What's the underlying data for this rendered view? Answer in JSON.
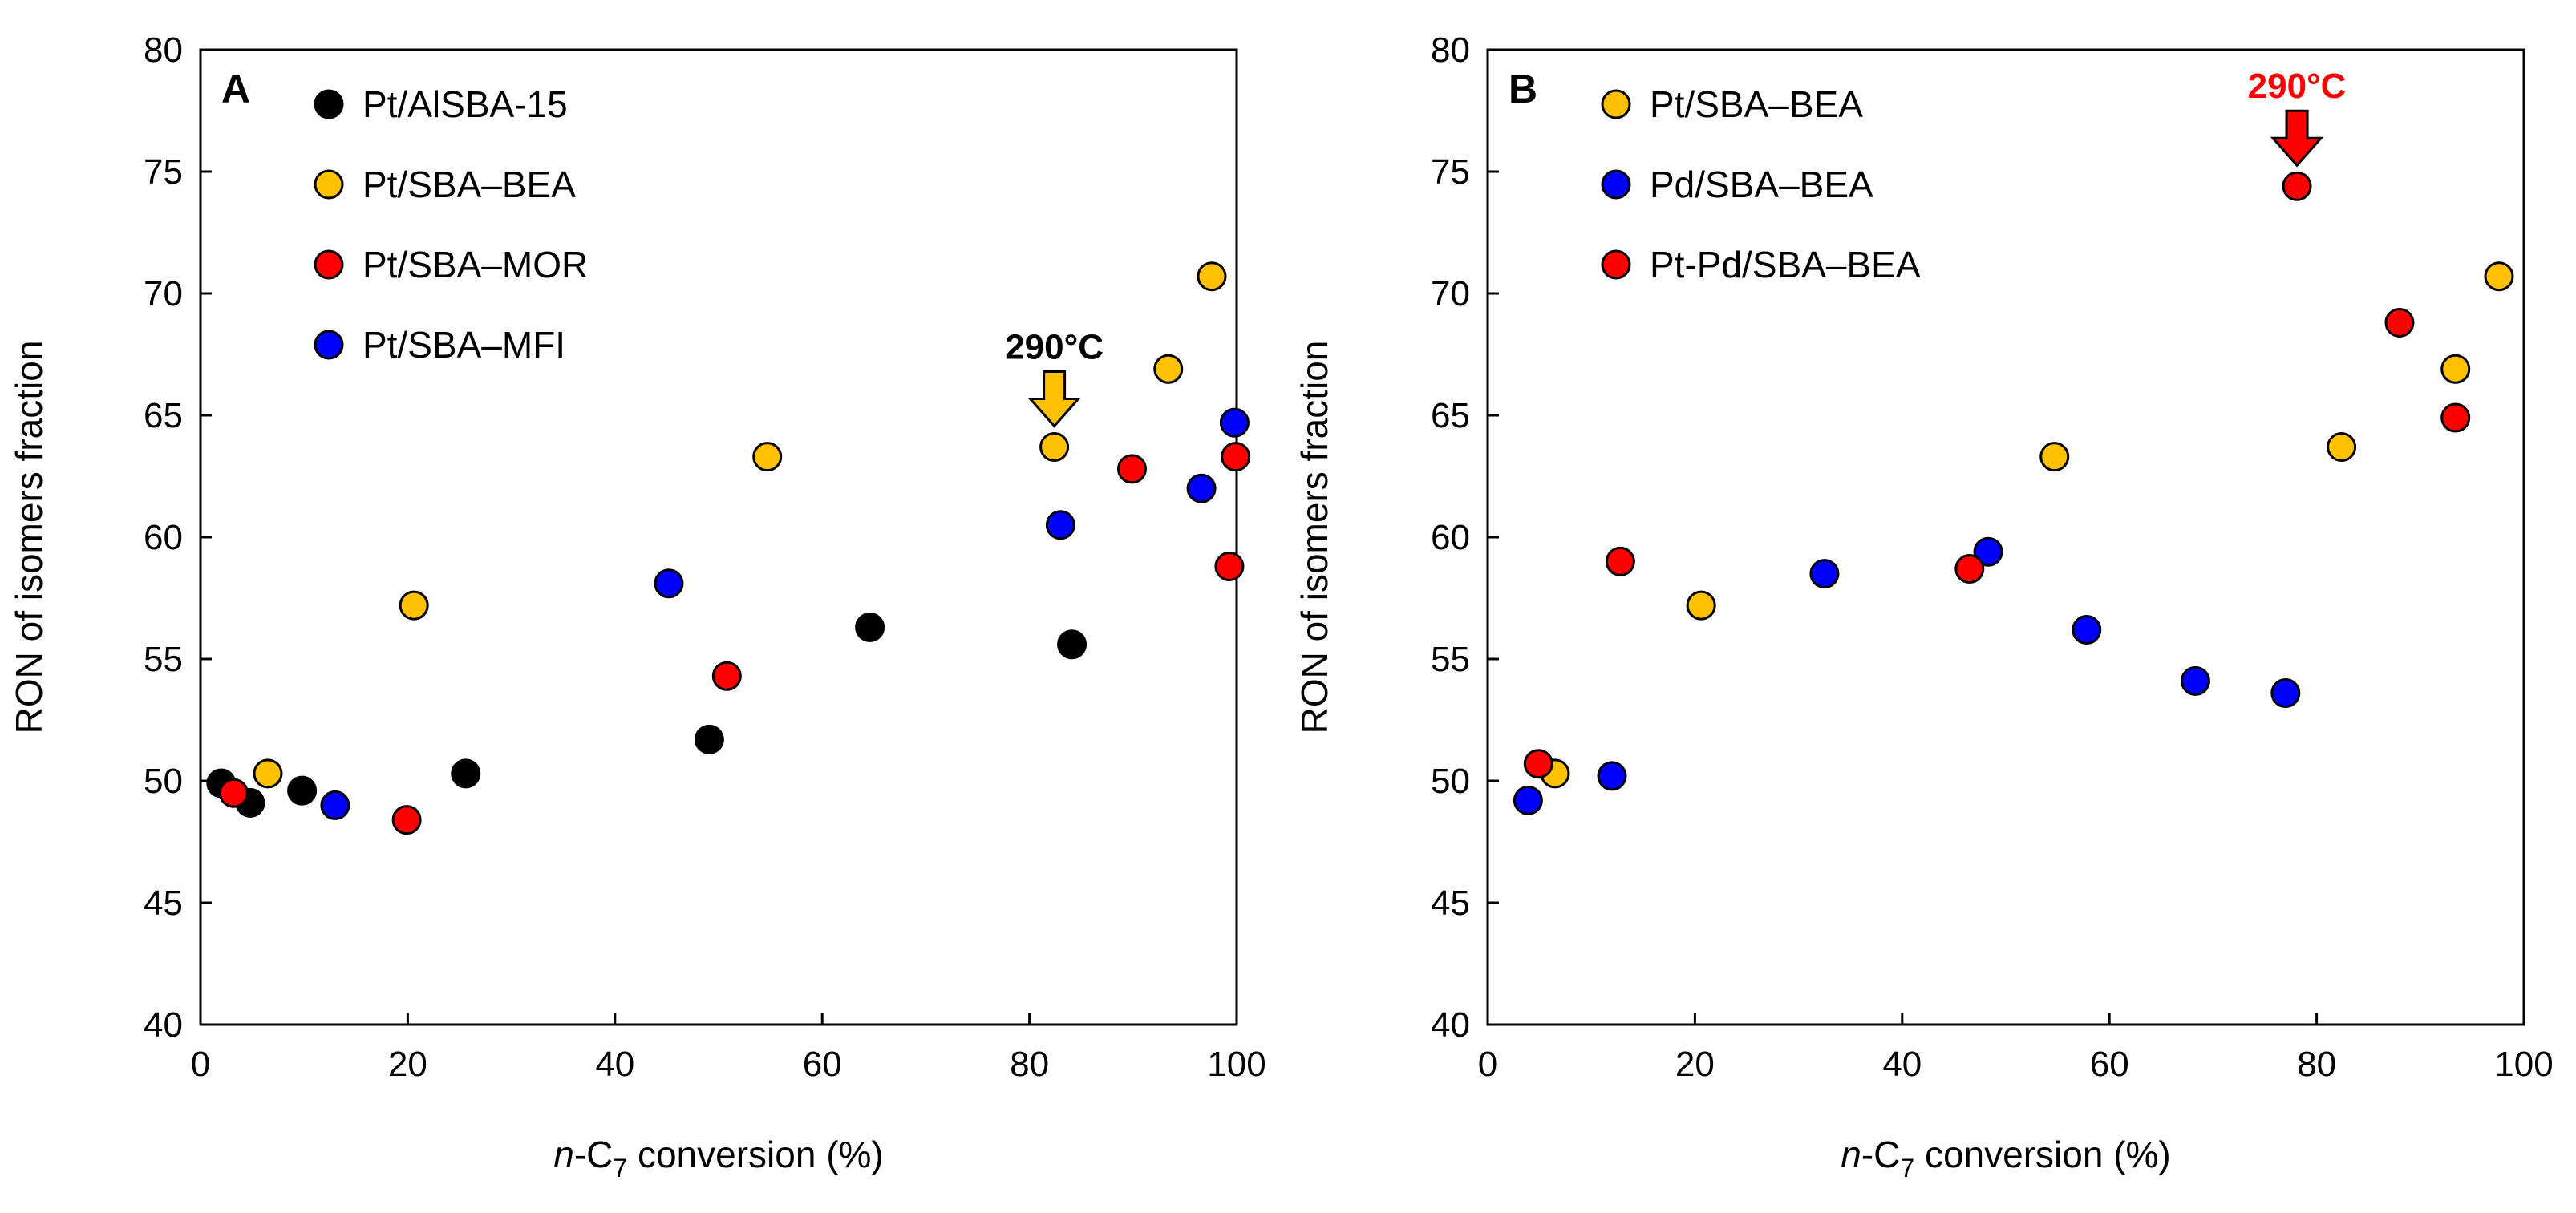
{
  "chart_data": [
    {
      "type": "scatter",
      "panel": "A",
      "xlabel": "n-C7 conversion (%)",
      "xlabel_italic": "n",
      "xlabel_pre": "-C",
      "xlabel_sub": "7",
      "xlabel_post": " conversion (%)",
      "ylabel": "RON of isomers fraction",
      "xlim": [
        0,
        100
      ],
      "ylim": [
        40,
        80
      ],
      "xticks": [
        0,
        20,
        40,
        60,
        80,
        100
      ],
      "yticks": [
        40,
        45,
        50,
        55,
        60,
        65,
        70,
        75,
        80
      ],
      "legend_position": "top-left",
      "series": [
        {
          "name": "Pt/AlSBA-15",
          "color": "#000000",
          "points": [
            [
              2,
              49.9
            ],
            [
              4.8,
              49.1
            ],
            [
              9.8,
              49.6
            ],
            [
              25.6,
              50.3
            ],
            [
              49.1,
              51.7
            ],
            [
              64.6,
              56.3
            ],
            [
              84.1,
              55.6
            ]
          ]
        },
        {
          "name": "Pt/SBA–BEA",
          "color": "#FFC000",
          "points": [
            [
              6.5,
              50.3
            ],
            [
              20.6,
              57.2
            ],
            [
              54.7,
              63.3
            ],
            [
              82.4,
              63.7
            ],
            [
              93.4,
              66.9
            ],
            [
              97.6,
              70.7
            ]
          ]
        },
        {
          "name": "Pt/SBA–MOR",
          "color": "#FF0000",
          "points": [
            [
              3.2,
              49.5
            ],
            [
              19.9,
              48.4
            ],
            [
              50.8,
              54.3
            ],
            [
              89.9,
              62.8
            ],
            [
              99.3,
              58.8
            ],
            [
              99.9,
              63.3
            ]
          ]
        },
        {
          "name": "Pt/SBA–MFI",
          "color": "#0000FF",
          "points": [
            [
              13,
              49.0
            ],
            [
              45.2,
              58.1
            ],
            [
              83,
              60.5
            ],
            [
              96.6,
              62.0
            ],
            [
              99.8,
              64.7
            ]
          ]
        }
      ],
      "annotation": {
        "text": "290°C",
        "target": [
          82.4,
          63.7
        ],
        "color": "#FFC000",
        "text_color": "#000000"
      }
    },
    {
      "type": "scatter",
      "panel": "B",
      "xlabel": "n-C7 conversion (%)",
      "xlabel_italic": "n",
      "xlabel_pre": "-C",
      "xlabel_sub": "7",
      "xlabel_post": " conversion (%)",
      "ylabel": "RON of isomers fraction",
      "xlim": [
        0,
        100
      ],
      "ylim": [
        40,
        80
      ],
      "xticks": [
        0,
        20,
        40,
        60,
        80,
        100
      ],
      "yticks": [
        40,
        45,
        50,
        55,
        60,
        65,
        70,
        75,
        80
      ],
      "legend_position": "top-left",
      "series": [
        {
          "name": "Pt/SBA–BEA",
          "color": "#FFC000",
          "points": [
            [
              6.5,
              50.3
            ],
            [
              20.6,
              57.2
            ],
            [
              54.7,
              63.3
            ],
            [
              82.4,
              63.7
            ],
            [
              93.4,
              66.9
            ],
            [
              97.6,
              70.7
            ]
          ]
        },
        {
          "name": "Pd/SBA–BEA",
          "color": "#0000FF",
          "points": [
            [
              3.9,
              49.2
            ],
            [
              12,
              50.2
            ],
            [
              32.5,
              58.5
            ],
            [
              48.3,
              59.4
            ],
            [
              57.8,
              56.2
            ],
            [
              68.3,
              54.1
            ],
            [
              77,
              53.6
            ]
          ]
        },
        {
          "name": "Pt-Pd/SBA–BEA",
          "color": "#FF0000",
          "points": [
            [
              4.9,
              50.7
            ],
            [
              12.8,
              59.0
            ],
            [
              46.5,
              58.7
            ],
            [
              78.1,
              74.4
            ],
            [
              88,
              68.8
            ],
            [
              93.4,
              64.9
            ]
          ]
        }
      ],
      "annotation": {
        "text": "290°C",
        "target": [
          78.1,
          74.4
        ],
        "color": "#FF0000",
        "text_color": "#FF0000"
      }
    }
  ]
}
